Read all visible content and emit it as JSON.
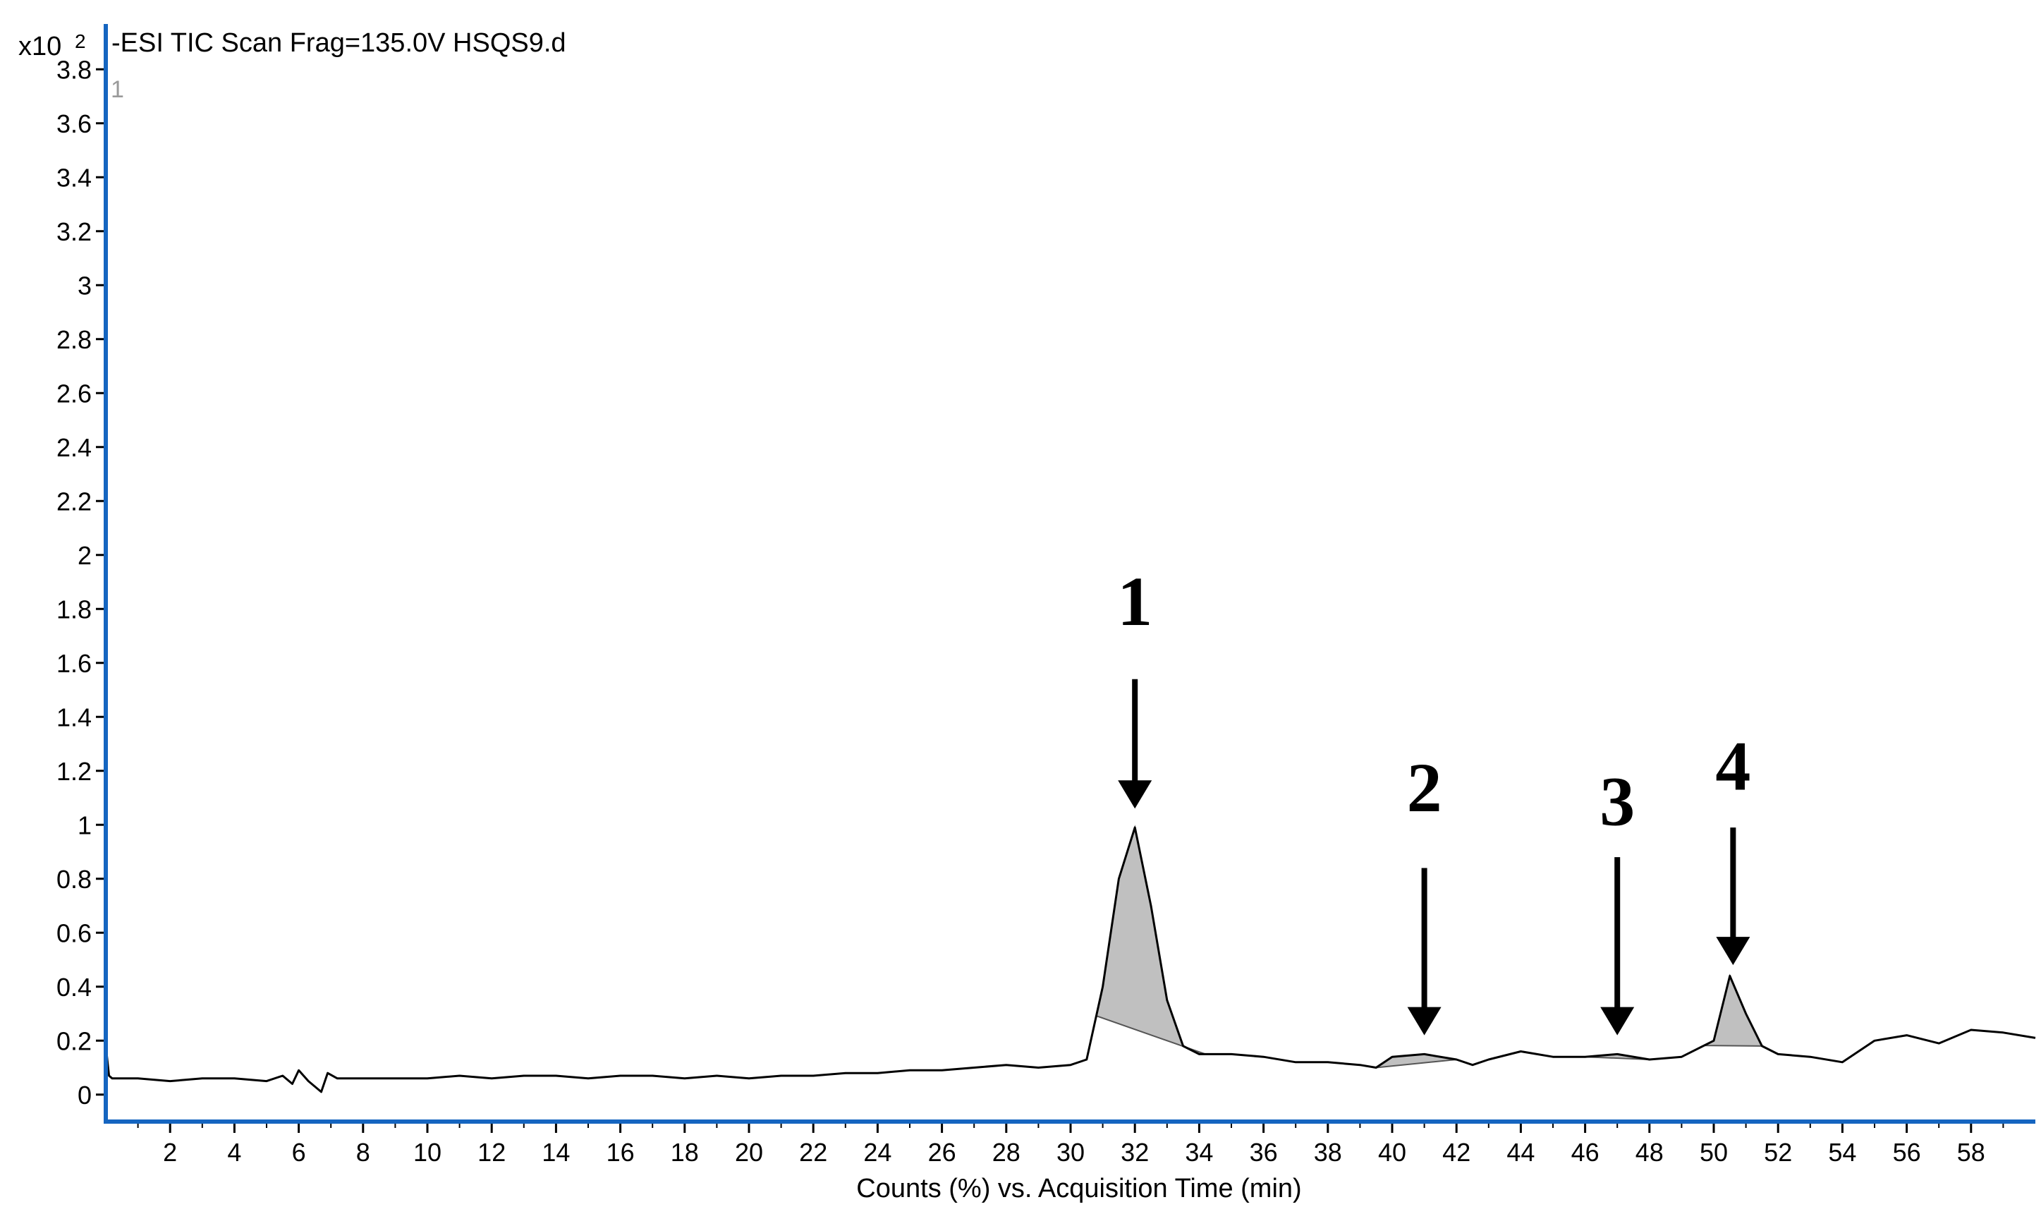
{
  "chart_data": {
    "type": "line",
    "title": "-ESI TIC Scan Frag=135.0V HSQS9.d",
    "pane_index": "1",
    "y_multiplier_base": "x10",
    "y_multiplier_exponent": "2",
    "xlabel": "Counts (%) vs. Acquisition Time (min)",
    "ylabel": "",
    "xlim": [
      0,
      60
    ],
    "ylim": [
      -0.1,
      3.9
    ],
    "x_ticks": [
      2,
      4,
      6,
      8,
      10,
      12,
      14,
      16,
      18,
      20,
      22,
      24,
      26,
      28,
      30,
      32,
      34,
      36,
      38,
      40,
      42,
      44,
      46,
      48,
      50,
      52,
      54,
      56,
      58
    ],
    "x_tick_labels": [
      "2",
      "4",
      "6",
      "8",
      "10",
      "12",
      "14",
      "16",
      "18",
      "20",
      "22",
      "24",
      "26",
      "28",
      "30",
      "32",
      "34",
      "36",
      "38",
      "40",
      "42",
      "44",
      "46",
      "48",
      "50",
      "52",
      "54",
      "56",
      "58"
    ],
    "y_ticks": [
      0,
      0.2,
      0.4,
      0.6,
      0.8,
      1,
      1.2,
      1.4,
      1.6,
      1.8,
      2,
      2.2,
      2.4,
      2.6,
      2.8,
      3,
      3.2,
      3.4,
      3.6,
      3.8
    ],
    "y_tick_labels": [
      "0",
      "0.2",
      "0.4",
      "0.6",
      "0.8",
      "1",
      "1.2",
      "1.4",
      "1.6",
      "1.8",
      "2",
      "2.2",
      "2.4",
      "2.6",
      "2.8",
      "3",
      "3.2",
      "3.4",
      "3.6",
      "3.8"
    ],
    "series": [
      {
        "x": [
          0,
          0.1,
          0.2,
          1,
          2,
          3,
          4,
          5,
          5.5,
          5.8,
          6,
          6.3,
          6.7,
          6.9,
          7.2,
          8,
          9,
          10,
          11,
          12,
          13,
          14,
          15,
          16,
          17,
          18,
          19,
          20,
          21,
          22,
          23,
          24,
          25,
          26,
          27,
          28,
          29,
          30,
          30.5,
          31,
          31.5,
          32,
          32.5,
          33,
          33.5,
          34,
          35,
          36,
          37,
          38,
          39,
          39.5,
          40,
          41,
          42,
          42.5,
          43,
          44,
          45,
          46,
          47,
          48,
          49,
          50,
          50.5,
          51,
          51.5,
          52,
          53,
          54,
          55,
          56,
          57,
          58,
          59,
          60
        ],
        "y": [
          0.18,
          0.07,
          0.06,
          0.06,
          0.05,
          0.06,
          0.06,
          0.05,
          0.07,
          0.04,
          0.09,
          0.05,
          0.01,
          0.08,
          0.06,
          0.06,
          0.06,
          0.06,
          0.07,
          0.06,
          0.07,
          0.07,
          0.06,
          0.07,
          0.07,
          0.06,
          0.07,
          0.06,
          0.07,
          0.07,
          0.08,
          0.08,
          0.09,
          0.09,
          0.1,
          0.11,
          0.1,
          0.11,
          0.13,
          0.4,
          0.8,
          0.99,
          0.7,
          0.35,
          0.18,
          0.15,
          0.15,
          0.14,
          0.12,
          0.12,
          0.11,
          0.1,
          0.14,
          0.15,
          0.13,
          0.11,
          0.13,
          0.16,
          0.14,
          0.14,
          0.15,
          0.13,
          0.14,
          0.2,
          0.44,
          0.3,
          0.18,
          0.15,
          0.14,
          0.12,
          0.2,
          0.22,
          0.19,
          0.24,
          0.23,
          0.21
        ]
      }
    ],
    "integrated_peaks": [
      {
        "label": "1",
        "x_start": 30.8,
        "x_end": 34.2,
        "apex_x": 32,
        "apex_y": 0.99
      },
      {
        "label": "2",
        "x_start": 39.5,
        "x_end": 42.0,
        "apex_x": 40.9,
        "apex_y": 0.15
      },
      {
        "label": "3",
        "x_start": 46.0,
        "x_end": 48.0,
        "apex_x": 46.9,
        "apex_y": 0.15
      },
      {
        "label": "4",
        "x_start": 49.7,
        "x_end": 51.5,
        "apex_x": 50.5,
        "apex_y": 0.44
      }
    ],
    "annotations": [
      {
        "label": "1",
        "arrow_x": 32,
        "text_y": 1.74,
        "arrow_top_y": 1.54,
        "arrow_tip_y": 1.06
      },
      {
        "label": "2",
        "arrow_x": 41,
        "text_y": 1.05,
        "arrow_top_y": 0.84,
        "arrow_tip_y": 0.22
      },
      {
        "label": "3",
        "arrow_x": 47,
        "text_y": 1.0,
        "arrow_top_y": 0.88,
        "arrow_tip_y": 0.22
      },
      {
        "label": "4",
        "arrow_x": 50.6,
        "text_y": 1.13,
        "arrow_top_y": 0.99,
        "arrow_tip_y": 0.48
      }
    ],
    "colors": {
      "axis": "#1565c0",
      "trace": "#000000",
      "peak_fill": "#c0c0c0",
      "text": "#000000"
    }
  }
}
